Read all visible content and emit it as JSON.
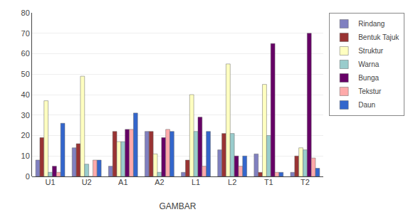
{
  "chart_data": {
    "type": "bar",
    "categories": [
      "U1",
      "U2",
      "A1",
      "A2",
      "L1",
      "L2",
      "T1",
      "T2"
    ],
    "series": [
      {
        "name": "Rindang",
        "color": "#8080C0",
        "values": [
          8,
          14,
          5,
          22,
          2,
          13,
          11,
          2
        ]
      },
      {
        "name": "Bentuk Tajuk",
        "color": "#993333",
        "values": [
          19,
          16,
          22,
          22,
          8,
          21,
          2,
          10
        ]
      },
      {
        "name": "Struktur",
        "color": "#FFFFC0",
        "values": [
          37,
          49,
          17,
          11,
          40,
          55,
          45,
          14
        ]
      },
      {
        "name": "Warna",
        "color": "#99CCCC",
        "values": [
          2,
          6,
          17,
          2,
          22,
          21,
          20,
          13
        ]
      },
      {
        "name": "Bunga",
        "color": "#660066",
        "values": [
          5,
          0,
          23,
          19,
          29,
          10,
          65,
          70
        ]
      },
      {
        "name": "Tekstur",
        "color": "#FFAAAA",
        "values": [
          2,
          8,
          23,
          23,
          5,
          5,
          2,
          9
        ]
      },
      {
        "name": "Daun",
        "color": "#3366CC",
        "values": [
          26,
          8,
          31,
          22,
          22,
          10,
          2,
          4
        ]
      }
    ],
    "xlabel": "GAMBAR",
    "ylim": [
      0,
      80
    ],
    "yticks": [
      0,
      10,
      20,
      30,
      40,
      50,
      60,
      70,
      80
    ],
    "grid": true,
    "legend": "right"
  }
}
